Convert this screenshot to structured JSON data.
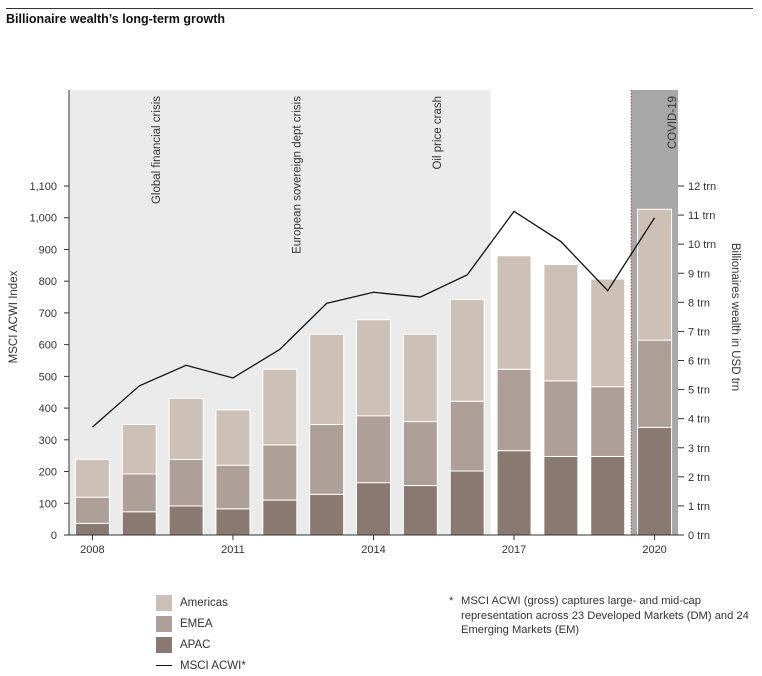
{
  "title": "Billionaire wealth’s long-term growth",
  "colors": {
    "Americas": "#cdc0b7",
    "EMEA": "#ae9f98",
    "APAC": "#8a7970",
    "line": "#111111",
    "shade": "#ebebeb",
    "covid_shade": "#a8a8a8",
    "covid_line": "#c0392b"
  },
  "footnote": "MSCI ACWI (gross) captures large- and mid-cap representation across 23 Developed Markets (DM) and 24 Emerging Markets (EM)",
  "footnote_star": "*",
  "chart_data": {
    "type": "bar",
    "stacked": true,
    "x_tick_labels": [
      "2008",
      "2011",
      "2014",
      "2017",
      "2020"
    ],
    "x_tick_years": [
      2008,
      2011,
      2014,
      2017,
      2020
    ],
    "years": [
      2008,
      2009,
      2010,
      2011,
      2012,
      2013,
      2014,
      2015,
      2016,
      2017,
      2018,
      2019,
      2020
    ],
    "series": [
      {
        "name": "APAC",
        "values": [
          0.4,
          0.8,
          1.0,
          0.9,
          1.2,
          1.4,
          1.8,
          1.7,
          2.2,
          2.9,
          2.7,
          2.7,
          3.7
        ]
      },
      {
        "name": "EMEA",
        "values": [
          0.9,
          1.3,
          1.6,
          1.5,
          1.9,
          2.4,
          2.3,
          2.2,
          2.4,
          2.8,
          2.6,
          2.4,
          3.0
        ]
      },
      {
        "name": "Americas",
        "values": [
          1.3,
          1.7,
          2.1,
          1.9,
          2.6,
          3.1,
          3.3,
          3.0,
          3.5,
          3.9,
          4.0,
          3.7,
          4.5
        ]
      }
    ],
    "line_series": {
      "name": "MSCI ACWI*",
      "values": [
        340,
        470,
        535,
        495,
        585,
        730,
        765,
        750,
        820,
        1020,
        925,
        770,
        1000
      ]
    },
    "y_left": {
      "label": "MSCI ACWI Index",
      "ylim": [
        0,
        1100
      ],
      "ticks": [
        "0",
        "100",
        "200",
        "300",
        "400",
        "500",
        "600",
        "700",
        "800",
        "900",
        "1,000",
        "1,100"
      ]
    },
    "y_right": {
      "label": "Billionaires wealth in USD trn",
      "ylim": [
        0,
        12
      ],
      "ticks": [
        "0 trn",
        "1 trn",
        "2 trn",
        "3 trn",
        "4 trn",
        "5 trn",
        "6 trn",
        "7 trn",
        "8 trn",
        "9 trn",
        "10 trn",
        "11 trn",
        "12 trn"
      ]
    },
    "shaded_periods": [
      {
        "label": "Global financial crisis",
        "start": 2008,
        "end": 2010
      },
      {
        "label": "European sovereign dept crisis",
        "start": 2011,
        "end": 2013
      },
      {
        "label": "Oil price crash",
        "start": 2014,
        "end": 2016
      },
      {
        "label": "COVID-19",
        "start": 2020,
        "end": 2020
      }
    ],
    "legend": [
      "Americas",
      "EMEA",
      "APAC",
      "MSCI ACWI*"
    ],
    "legend_position": "bottom-left"
  }
}
